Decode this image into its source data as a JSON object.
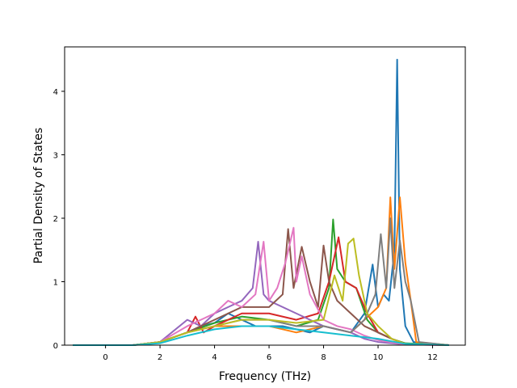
{
  "chart_data": {
    "type": "line",
    "title": "",
    "xlabel": "Frequency (THz)",
    "ylabel": "Partial Density of States",
    "xlim": [
      -1.5,
      13.2
    ],
    "ylim": [
      0,
      4.7
    ],
    "xticks": [
      0,
      2,
      4,
      6,
      8,
      10,
      12
    ],
    "yticks": [
      0,
      1,
      2,
      3,
      4
    ],
    "grid": false,
    "legend": "none",
    "series": [
      {
        "color": "#1f77b4",
        "x": [
          -1.2,
          1.0,
          2.0,
          3.0,
          3.5,
          4.0,
          4.5,
          5.0,
          5.5,
          6.0,
          6.5,
          7.0,
          7.5,
          8.0,
          8.5,
          9.0,
          9.5,
          9.8,
          10.0,
          10.2,
          10.4,
          10.6,
          10.7,
          10.8,
          11.0,
          11.3,
          12.6
        ],
        "y": [
          0,
          0,
          0.05,
          0.2,
          0.3,
          0.35,
          0.5,
          0.4,
          0.3,
          0.3,
          0.3,
          0.25,
          0.2,
          0.3,
          0.25,
          0.2,
          0.5,
          1.27,
          0.6,
          0.8,
          0.7,
          1.5,
          4.5,
          1.2,
          0.3,
          0.05,
          0
        ]
      },
      {
        "color": "#ff7f0e",
        "x": [
          -1.2,
          1.0,
          2.0,
          3.0,
          4.0,
          5.0,
          6.0,
          7.0,
          8.0,
          9.0,
          9.5,
          10.0,
          10.3,
          10.45,
          10.6,
          10.8,
          11.0,
          11.2,
          11.4,
          12.6
        ],
        "y": [
          0,
          0,
          0.05,
          0.2,
          0.3,
          0.3,
          0.3,
          0.2,
          0.3,
          0.2,
          0.4,
          0.6,
          0.9,
          2.33,
          1.2,
          2.33,
          1.3,
          0.7,
          0.05,
          0
        ]
      },
      {
        "color": "#2ca02c",
        "x": [
          -1.2,
          1.0,
          2.0,
          3.0,
          4.0,
          5.0,
          6.0,
          7.0,
          7.8,
          8.2,
          8.35,
          8.5,
          8.8,
          9.2,
          9.6,
          10.0,
          10.5,
          11.0,
          12.6
        ],
        "y": [
          0,
          0,
          0.05,
          0.2,
          0.35,
          0.45,
          0.4,
          0.3,
          0.4,
          0.9,
          1.98,
          1.2,
          1.0,
          0.9,
          0.4,
          0.2,
          0.1,
          0.03,
          0
        ]
      },
      {
        "color": "#d62728",
        "x": [
          -1.2,
          1.0,
          2.0,
          3.0,
          3.3,
          3.6,
          4.0,
          5.0,
          6.0,
          7.0,
          7.8,
          8.2,
          8.55,
          8.8,
          9.2,
          9.6,
          10.0,
          10.5,
          11.0,
          12.6
        ],
        "y": [
          0,
          0,
          0.05,
          0.2,
          0.45,
          0.2,
          0.3,
          0.5,
          0.5,
          0.4,
          0.5,
          1.0,
          1.7,
          1.0,
          0.9,
          0.5,
          0.2,
          0.1,
          0.02,
          0
        ]
      },
      {
        "color": "#9467bd",
        "x": [
          -1.2,
          1.0,
          2.0,
          3.0,
          3.5,
          4.0,
          4.5,
          5.0,
          5.4,
          5.6,
          5.8,
          6.0,
          6.5,
          7.0,
          7.5,
          8.0,
          8.5,
          9.0,
          9.5,
          10.0,
          11.0,
          12.6
        ],
        "y": [
          0,
          0,
          0.05,
          0.4,
          0.3,
          0.5,
          0.6,
          0.7,
          0.9,
          1.63,
          0.8,
          0.7,
          0.6,
          0.5,
          0.4,
          0.3,
          0.25,
          0.2,
          0.1,
          0.05,
          0.01,
          0
        ]
      },
      {
        "color": "#8c564b",
        "x": [
          -1.2,
          1.0,
          2.0,
          3.0,
          4.0,
          5.0,
          6.0,
          6.5,
          6.7,
          6.9,
          7.2,
          7.5,
          7.8,
          8.0,
          8.2,
          8.5,
          9.0,
          9.5,
          10.0,
          10.5,
          11.0,
          12.6
        ],
        "y": [
          0,
          0,
          0.05,
          0.2,
          0.4,
          0.6,
          0.6,
          0.8,
          1.83,
          0.9,
          1.55,
          1.0,
          0.6,
          1.57,
          1.0,
          0.7,
          0.5,
          0.3,
          0.2,
          0.1,
          0.02,
          0
        ]
      },
      {
        "color": "#e377c2",
        "x": [
          -1.2,
          1.0,
          2.0,
          3.0,
          4.0,
          4.5,
          5.0,
          5.5,
          5.8,
          6.0,
          6.3,
          6.6,
          6.9,
          7.0,
          7.2,
          7.5,
          8.0,
          8.5,
          9.0,
          9.5,
          10.0,
          11.0,
          12.6
        ],
        "y": [
          0,
          0,
          0.05,
          0.3,
          0.5,
          0.7,
          0.6,
          0.8,
          1.63,
          0.7,
          0.9,
          1.3,
          1.85,
          1.0,
          1.4,
          0.8,
          0.4,
          0.3,
          0.25,
          0.15,
          0.08,
          0.01,
          0
        ]
      },
      {
        "color": "#7f7f7f",
        "x": [
          -1.2,
          1.0,
          2.0,
          3.0,
          4.0,
          5.0,
          6.0,
          7.0,
          8.0,
          9.0,
          9.5,
          9.9,
          10.1,
          10.3,
          10.45,
          10.6,
          10.8,
          11.0,
          11.2,
          11.5,
          12.6
        ],
        "y": [
          0,
          0,
          0.05,
          0.2,
          0.3,
          0.4,
          0.4,
          0.3,
          0.3,
          0.2,
          0.4,
          0.8,
          1.75,
          0.9,
          2.0,
          0.9,
          1.65,
          1.0,
          0.7,
          0.05,
          0
        ]
      },
      {
        "color": "#bcbd22",
        "x": [
          -1.2,
          1.0,
          2.0,
          3.0,
          4.0,
          5.0,
          6.0,
          7.0,
          8.0,
          8.4,
          8.7,
          8.9,
          9.1,
          9.3,
          9.6,
          10.0,
          10.5,
          11.0,
          12.6
        ],
        "y": [
          0,
          0,
          0.05,
          0.2,
          0.3,
          0.4,
          0.4,
          0.35,
          0.4,
          1.1,
          0.7,
          1.6,
          1.68,
          1.1,
          0.5,
          0.3,
          0.1,
          0.02,
          0
        ]
      },
      {
        "color": "#17becf",
        "x": [
          -1.2,
          1.0,
          2.0,
          3.0,
          4.0,
          5.0,
          6.0,
          7.0,
          8.0,
          9.0,
          10.0,
          11.0,
          12.6
        ],
        "y": [
          0,
          0,
          0.03,
          0.15,
          0.25,
          0.3,
          0.3,
          0.25,
          0.2,
          0.15,
          0.1,
          0.02,
          0
        ]
      }
    ]
  }
}
